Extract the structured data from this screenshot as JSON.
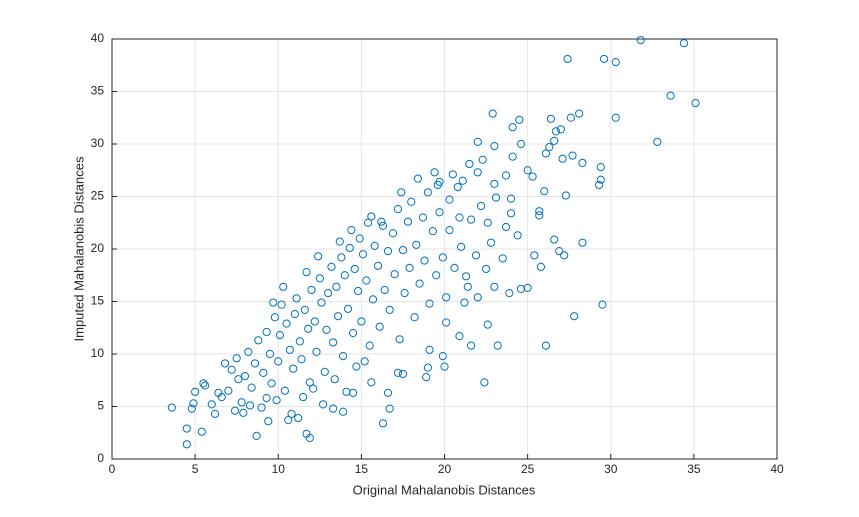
{
  "chart_data": {
    "type": "scatter",
    "xlabel": "Original Mahalanobis Distances",
    "ylabel": "Imputed Mahalanobis Distances",
    "xlim": [
      0,
      40
    ],
    "ylim": [
      0,
      40
    ],
    "xticks": [
      0,
      5,
      10,
      15,
      20,
      25,
      30,
      35,
      40
    ],
    "yticks": [
      0,
      5,
      10,
      15,
      20,
      25,
      30,
      35,
      40
    ],
    "grid": true,
    "color": "#0072bd",
    "x": [
      31.8,
      34.4,
      27.4,
      29.6,
      30.3,
      33.6,
      35.1,
      32.8,
      30.3,
      22.9,
      27.6,
      28.1,
      26.4,
      24.5,
      24.1,
      26.7,
      27.0,
      29.5,
      27.8,
      26.1,
      22.4,
      23.2,
      28.3,
      29.3,
      29.4,
      29.4,
      28.3,
      27.7,
      27.1,
      27.3,
      26.0,
      25.7,
      25.7,
      24.0,
      25.3,
      25.0,
      23.0,
      23.7,
      26.1,
      26.3,
      26.6,
      24.6,
      24.1,
      22.0,
      23.0,
      22.0,
      21.1,
      20.3,
      19.7,
      20.9,
      22.6,
      23.7,
      24.4,
      25.4,
      25.8,
      26.6,
      27.2,
      26.9,
      25.0,
      24.6,
      23.9,
      23.0,
      22.0,
      21.4,
      22.6,
      21.2,
      20.9,
      21.6,
      20.1,
      19.9,
      20.0,
      19.1,
      18.9,
      19.0,
      17.2,
      17.5,
      16.7,
      16.6,
      16.3,
      15.6,
      14.5,
      13.9,
      13.3,
      11.7,
      11.9,
      9.3,
      8.7,
      10.6,
      3.6,
      4.5,
      4.5,
      5.4,
      4.8,
      4.9,
      5.0,
      5.5,
      5.6,
      6.0,
      6.2,
      6.4,
      7,
      7.2,
      7.5,
      7.8,
      8,
      8.2,
      8.4,
      8.6,
      8.8,
      9,
      9.1,
      9.3,
      9.5,
      9.6,
      9.8,
      10,
      10.1,
      10.2,
      10.4,
      10.5,
      10.7,
      10.9,
      11,
      11.1,
      11.3,
      11.4,
      11.6,
      11.8,
      11.9,
      12,
      12.2,
      12.3,
      12.5,
      12.6,
      12.8,
      12.9,
      13,
      13.2,
      13.3,
      13.5,
      13.6,
      13.8,
      13.9,
      14,
      14.2,
      14.3,
      14.5,
      14.6,
      14.8,
      14.9,
      15,
      15.1,
      15.3,
      15.4,
      15.5,
      15.7,
      15.8,
      16,
      16.1,
      16.3,
      16.4,
      16.6,
      16.7,
      16.9,
      17,
      17.2,
      17.3,
      17.5,
      17.6,
      17.8,
      17.9,
      18,
      18.2,
      18.3,
      18.5,
      18.7,
      18.8,
      19,
      19.1,
      19.3,
      19.5,
      19.7,
      19.9,
      20.1,
      20.3,
      20.6,
      20.8,
      21,
      21.3,
      21.6,
      21.9,
      22.2,
      22.5,
      22.8,
      23.1,
      23.5,
      24,
      8.3,
      7.6,
      6.8,
      6.6,
      7.4,
      9.9,
      10.8,
      11.5,
      12.1,
      12.7,
      13.4,
      14.1,
      14.7,
      15.2,
      10.3,
      11.7,
      9.7,
      12.4,
      13.7,
      14.4,
      15.6,
      16.2,
      17.4,
      18.4,
      19.4,
      19.6,
      20.5,
      21.5,
      22.3,
      11.2,
      9.4,
      7.9
    ],
    "values": [
      39.9,
      39.6,
      38.1,
      38.1,
      37.8,
      34.6,
      33.9,
      30.2,
      32.5,
      32.9,
      32.5,
      32.9,
      32.4,
      32.3,
      31.6,
      31.2,
      31.4,
      14.7,
      13.6,
      10.8,
      7.3,
      10.8,
      20.6,
      26.1,
      26.6,
      27.8,
      28.2,
      28.9,
      28.6,
      25.1,
      25.5,
      23.6,
      23.2,
      24.8,
      26.9,
      27.5,
      26.2,
      27.0,
      29.1,
      29.7,
      30.3,
      30.0,
      28.8,
      30.2,
      29.8,
      27.3,
      26.5,
      24.7,
      26.4,
      23.0,
      22.5,
      22.1,
      21.3,
      19.4,
      18.3,
      20.9,
      19.4,
      19.8,
      16.3,
      16.2,
      15.8,
      16.4,
      15.4,
      16.4,
      12.8,
      14.9,
      11.7,
      10.8,
      13.0,
      9.8,
      8.8,
      10.4,
      7.8,
      8.7,
      8.2,
      8.1,
      4.8,
      6.3,
      3.4,
      7.3,
      6.3,
      4.5,
      4.8,
      2.4,
      2.0,
      5.8,
      2.2,
      3.7,
      4.9,
      2.9,
      1.4,
      2.6,
      4.8,
      5.3,
      6.4,
      7.2,
      7.0,
      5.2,
      4.3,
      6.3,
      6.5,
      8.5,
      9.6,
      5.4,
      7.9,
      10.2,
      6.8,
      9.1,
      11.3,
      4.9,
      8.2,
      12.1,
      10,
      7.2,
      13.5,
      9.3,
      11.8,
      14.7,
      6.5,
      12.9,
      10.4,
      8.6,
      13.8,
      15.3,
      11.2,
      9.5,
      14.2,
      12.4,
      7.3,
      16.1,
      13.1,
      10.2,
      17.2,
      14.9,
      8.3,
      12.3,
      15.8,
      18.3,
      11.1,
      16.4,
      13.6,
      19.2,
      9.8,
      17.5,
      14.3,
      20.1,
      12,
      18.1,
      16,
      21,
      13.1,
      19.5,
      17,
      22.5,
      10.8,
      15.2,
      20.3,
      18.4,
      12.6,
      22.2,
      16.1,
      19.8,
      14.2,
      21.5,
      17.6,
      23.8,
      11.4,
      19.9,
      15.8,
      22.6,
      18.2,
      24.5,
      13.5,
      20.4,
      16.7,
      23,
      18.9,
      25.4,
      14.8,
      21.7,
      17.5,
      23.5,
      19.2,
      15.4,
      21.8,
      18.2,
      25.9,
      20.2,
      17.4,
      22.8,
      19.4,
      24.1,
      18.1,
      20.6,
      24.9,
      19.1,
      23.4,
      5.1,
      7.6,
      9.1,
      5.9,
      4.6,
      5.6,
      4.3,
      5.9,
      6.7,
      5.2,
      7.6,
      6.4,
      8.8,
      9.3,
      16.4,
      17.8,
      14.9,
      19.3,
      20.7,
      21.8,
      23.1,
      22.6,
      25.4,
      26.7,
      27.3,
      26.1,
      27.1,
      28.1,
      28.5,
      3.9,
      3.6,
      4.4
    ]
  }
}
